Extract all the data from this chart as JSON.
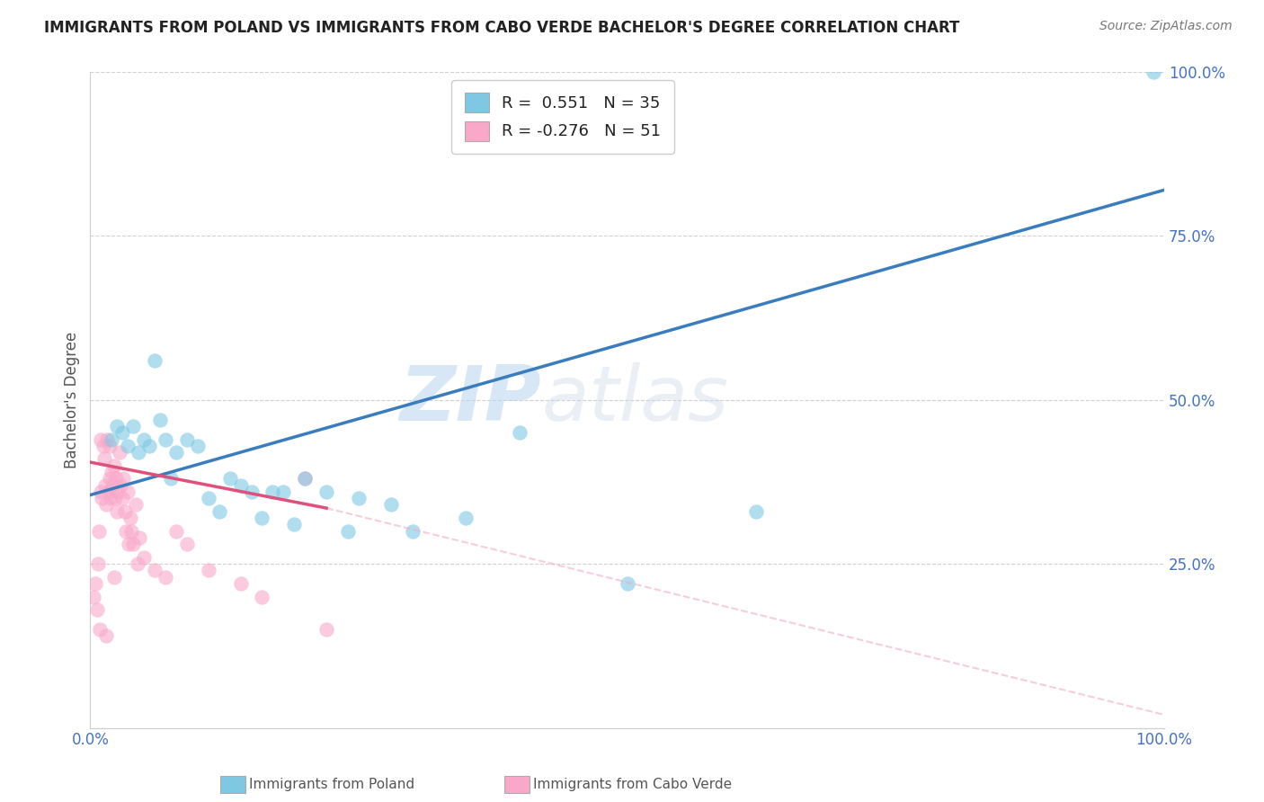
{
  "title": "IMMIGRANTS FROM POLAND VS IMMIGRANTS FROM CABO VERDE BACHELOR'S DEGREE CORRELATION CHART",
  "source": "Source: ZipAtlas.com",
  "ylabel": "Bachelor's Degree",
  "xlim": [
    0,
    1.0
  ],
  "ylim": [
    0,
    1.0
  ],
  "xticks": [
    0,
    0.25,
    0.5,
    0.75,
    1.0
  ],
  "xticklabels": [
    "0.0%",
    "",
    "",
    "",
    "100.0%"
  ],
  "yticks": [
    0,
    0.25,
    0.5,
    0.75,
    1.0
  ],
  "yticklabels": [
    "",
    "25.0%",
    "50.0%",
    "75.0%",
    "100.0%"
  ],
  "watermark_zip": "ZIP",
  "watermark_atlas": "atlas",
  "poland_color": "#7ec8e3",
  "cabo_verde_color": "#f9a8c9",
  "poland_line_color": "#3a7dbf",
  "cabo_verde_line_solid_color": "#e0507a",
  "cabo_verde_line_dashed_color": "#f4aac4",
  "poland_R": 0.551,
  "poland_N": 35,
  "cabo_verde_R": -0.276,
  "cabo_verde_N": 51,
  "poland_scatter_x": [
    0.02,
    0.025,
    0.03,
    0.035,
    0.04,
    0.045,
    0.05,
    0.055,
    0.06,
    0.065,
    0.07,
    0.075,
    0.08,
    0.09,
    0.1,
    0.11,
    0.12,
    0.13,
    0.14,
    0.15,
    0.16,
    0.17,
    0.18,
    0.19,
    0.2,
    0.22,
    0.24,
    0.25,
    0.28,
    0.3,
    0.35,
    0.4,
    0.5,
    0.62,
    0.99
  ],
  "poland_scatter_y": [
    0.44,
    0.46,
    0.45,
    0.43,
    0.46,
    0.42,
    0.44,
    0.43,
    0.56,
    0.47,
    0.44,
    0.38,
    0.42,
    0.44,
    0.43,
    0.35,
    0.33,
    0.38,
    0.37,
    0.36,
    0.32,
    0.36,
    0.36,
    0.31,
    0.38,
    0.36,
    0.3,
    0.35,
    0.34,
    0.3,
    0.32,
    0.45,
    0.22,
    0.33,
    1.0
  ],
  "cabo_verde_scatter_x": [
    0.003,
    0.005,
    0.006,
    0.007,
    0.008,
    0.009,
    0.01,
    0.01,
    0.011,
    0.012,
    0.013,
    0.014,
    0.015,
    0.015,
    0.016,
    0.017,
    0.018,
    0.018,
    0.019,
    0.02,
    0.021,
    0.022,
    0.022,
    0.023,
    0.024,
    0.025,
    0.026,
    0.027,
    0.028,
    0.03,
    0.031,
    0.032,
    0.033,
    0.035,
    0.036,
    0.037,
    0.038,
    0.04,
    0.042,
    0.044,
    0.046,
    0.05,
    0.06,
    0.07,
    0.08,
    0.09,
    0.11,
    0.14,
    0.16,
    0.2,
    0.22
  ],
  "cabo_verde_scatter_y": [
    0.2,
    0.22,
    0.18,
    0.25,
    0.3,
    0.15,
    0.44,
    0.36,
    0.35,
    0.43,
    0.41,
    0.37,
    0.34,
    0.14,
    0.44,
    0.36,
    0.43,
    0.38,
    0.35,
    0.39,
    0.37,
    0.4,
    0.23,
    0.35,
    0.38,
    0.33,
    0.36,
    0.42,
    0.37,
    0.35,
    0.38,
    0.33,
    0.3,
    0.36,
    0.28,
    0.32,
    0.3,
    0.28,
    0.34,
    0.25,
    0.29,
    0.26,
    0.24,
    0.23,
    0.3,
    0.28,
    0.24,
    0.22,
    0.2,
    0.38,
    0.15
  ],
  "background_color": "#ffffff",
  "grid_color": "#cccccc",
  "tick_color": "#4472c4",
  "legend_poland_label": "R =  0.551   N = 35",
  "legend_cabo_label": "R = -0.276   N = 51",
  "bottom_legend_poland": "Immigrants from Poland",
  "bottom_legend_cabo": "Immigrants from Cabo Verde"
}
